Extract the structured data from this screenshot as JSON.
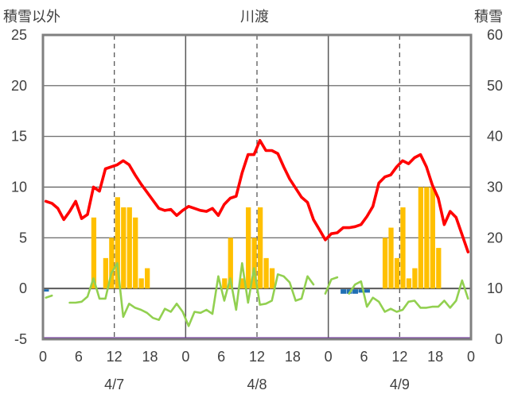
{
  "chart_data": {
    "type": "bar+line",
    "title": "川渡",
    "left_axis_label": "積雪以外",
    "right_axis_label": "積雪",
    "left_ylim": [
      -5,
      25
    ],
    "left_yticks": [
      "25",
      "20",
      "15",
      "10",
      "5",
      "0",
      "-5"
    ],
    "right_ylim": [
      0,
      60
    ],
    "right_yticks": [
      "60",
      "50",
      "40",
      "30",
      "20",
      "10",
      "0"
    ],
    "x_range_hours": [
      0,
      72
    ],
    "x_tick_labels": [
      "0",
      "6",
      "12",
      "18",
      "0",
      "6",
      "12",
      "18",
      "0",
      "6",
      "12",
      "18",
      "0"
    ],
    "date_labels": [
      "4/7",
      "4/8",
      "4/9"
    ],
    "colors": {
      "temperature": "#ff0000",
      "wind": "#92d050",
      "precipitation": "#ffc000",
      "sunshine": "#1f6fb4",
      "snow_depth": "#7030a0",
      "frame": "#808080",
      "grid": "#595959"
    },
    "series": [
      {
        "key": "temperature",
        "unit_axis": "left",
        "values": [
          8.6,
          8.4,
          7.9,
          6.8,
          7.6,
          8.6,
          6.9,
          7.3,
          10.0,
          9.6,
          11.8,
          12.0,
          12.2,
          12.6,
          12.2,
          11.2,
          10.3,
          9.5,
          8.7,
          7.9,
          7.7,
          7.8,
          7.2,
          7.7,
          8.1,
          7.9,
          7.7,
          7.6,
          7.9,
          7.2,
          8.3,
          8.9,
          9.1,
          11.4,
          13.2,
          13.2,
          14.6,
          13.6,
          13.6,
          13.3,
          12.0,
          10.8,
          9.9,
          9.0,
          8.5,
          6.8,
          5.8,
          4.8,
          5.4,
          5.5,
          6.0,
          6.0,
          6.1,
          6.3,
          7.1,
          8.1,
          10.4,
          11.0,
          11.2,
          12.0,
          12.6,
          12.3,
          12.9,
          13.2,
          12.0,
          10.2,
          8.9,
          6.3,
          7.6,
          7.0,
          5.3,
          3.6
        ]
      },
      {
        "key": "wind",
        "unit_axis": "left",
        "values": [
          -0.9,
          -0.7,
          null,
          null,
          -1.4,
          -1.4,
          -1.3,
          -0.8,
          1.0,
          -1.0,
          -1.0,
          1.5,
          2.5,
          -2.8,
          -1.5,
          -1.9,
          -2.1,
          -2.4,
          -2.9,
          -3.1,
          -2.0,
          -2.3,
          -1.5,
          -2.3,
          -3.7,
          -2.3,
          -2.4,
          -2.1,
          -2.5,
          1.2,
          -1.2,
          1.0,
          -2.1,
          2.5,
          -1.4,
          2.0,
          -1.6,
          -1.5,
          -1.2,
          1.4,
          1.2,
          0.6,
          -1.2,
          -1.0,
          1.2,
          0.4,
          null,
          -0.5,
          0.9,
          1.1,
          null,
          -0.5,
          0.4,
          0.7,
          -1.8,
          -0.9,
          -1.3,
          -2.3,
          -2.0,
          -2.3,
          -2.1,
          -1.3,
          -1.2,
          -1.9,
          -1.9,
          -1.8,
          -1.8,
          -1.2,
          -1.9,
          -1.2,
          0.8,
          -1.0
        ]
      },
      {
        "key": "precipitation",
        "unit_axis": "left",
        "values": [
          0,
          0,
          0,
          0,
          0,
          0,
          0,
          0,
          7,
          0,
          3,
          5,
          9,
          8,
          8,
          7,
          1,
          2,
          0,
          0,
          0,
          0,
          0,
          0,
          0,
          0,
          0,
          0,
          0,
          0,
          1,
          5,
          0,
          1,
          8,
          5,
          8,
          3,
          2,
          0,
          0,
          0,
          0,
          0,
          0,
          0,
          0,
          0,
          0,
          0,
          0,
          0,
          0,
          0,
          0,
          0,
          0,
          5,
          6,
          3,
          8,
          1,
          2,
          10,
          10,
          10,
          4,
          0,
          0,
          0,
          0,
          0
        ]
      },
      {
        "key": "sunshine",
        "unit_axis": "left",
        "values": [
          0.2,
          0,
          0,
          0,
          0,
          0,
          0,
          0,
          0,
          0,
          0,
          0,
          0,
          0,
          0,
          0,
          0,
          0,
          0,
          0,
          0,
          0,
          0,
          0,
          0,
          0,
          0,
          0,
          0,
          0,
          0,
          0,
          0,
          0,
          0,
          0,
          0,
          0,
          0,
          0,
          0,
          0,
          0,
          0,
          0,
          0,
          0,
          0,
          0,
          0,
          0.4,
          0.4,
          0.4,
          0.3,
          0.3,
          0,
          0,
          0,
          0,
          0,
          0,
          0,
          0,
          0,
          0,
          0,
          0,
          0,
          0,
          0,
          0,
          0
        ]
      },
      {
        "key": "snow_depth",
        "unit_axis": "right",
        "values": [
          0,
          0
        ]
      }
    ]
  }
}
